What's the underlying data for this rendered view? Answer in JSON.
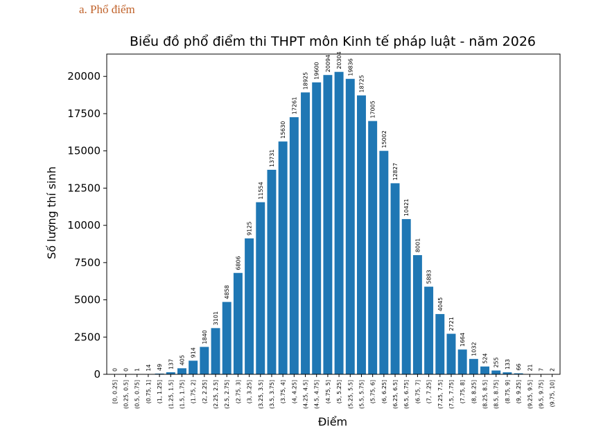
{
  "heading": "a.  Phổ điểm",
  "chart_data": {
    "type": "bar",
    "title": "Biểu đồ phổ điểm thi THPT môn Kinh tế pháp luật - năm 2026",
    "xlabel": "Điểm",
    "ylabel": "Số lượng thí sinh",
    "ylim": [
      0,
      21500
    ],
    "yticks": [
      0,
      2500,
      5000,
      7500,
      10000,
      12500,
      15000,
      17500,
      20000
    ],
    "bar_color": "#1f77b4",
    "grid": false,
    "categories": [
      "[0, 0.25]",
      "(0.25, 0.5]",
      "(0.5, 0.75]",
      "(0.75, 1]",
      "(1, 1.25]",
      "(1.25, 1.5]",
      "(1.5, 1.75]",
      "(1.75, 2]",
      "(2, 2.25]",
      "(2.25, 2.5]",
      "(2.5, 2.75]",
      "(2.75, 3]",
      "(3, 3.25]",
      "(3.25, 3.5]",
      "(3.5, 3.75]",
      "(3.75, 4]",
      "(4, 4.25]",
      "(4.25, 4.5]",
      "(4.5, 4.75]",
      "(4.75, 5]",
      "(5, 5.25]",
      "(5.25, 5.5]",
      "(5.5, 5.75]",
      "(5.75, 6]",
      "(6, 6.25]",
      "(6.25, 6.5]",
      "(6.5, 6.75]",
      "(6.75, 7]",
      "(7, 7.25]",
      "(7.25, 7.5]",
      "(7.5, 7.75]",
      "(7.75, 8]",
      "(8, 8.25]",
      "(8.25, 8.5]",
      "(8.5, 8.75]",
      "(8.75, 9]",
      "(9, 9.25]",
      "(9.25, 9.5]",
      "(9.5, 9.75]",
      "(9.75, 10]"
    ],
    "values": [
      0,
      0,
      1,
      14,
      49,
      137,
      405,
      914,
      1840,
      3101,
      4858,
      6806,
      9125,
      11554,
      13731,
      15630,
      17261,
      18925,
      19600,
      20094,
      20304,
      19836,
      18725,
      17005,
      15002,
      12827,
      10421,
      8001,
      5883,
      4045,
      2721,
      1664,
      1032,
      524,
      255,
      133,
      66,
      21,
      7,
      2
    ]
  }
}
